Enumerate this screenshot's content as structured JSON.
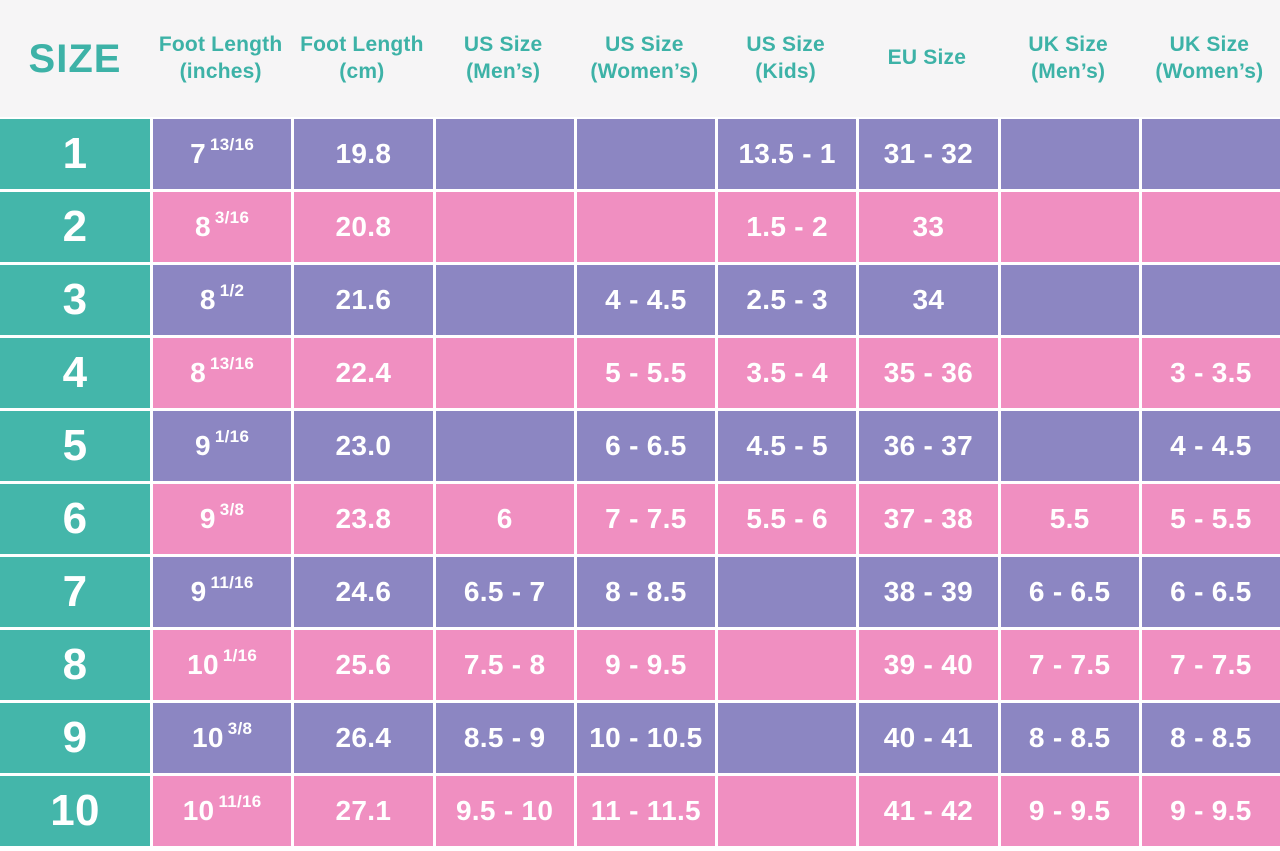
{
  "colors": {
    "teal": "#44b6aa",
    "purple": "#8c86c2",
    "pink": "#f08fc1",
    "header_background": "#f6f5f6",
    "header_text": "#3db2a7",
    "cell_text": "#ffffff"
  },
  "chart_data": {
    "type": "table",
    "columns": [
      {
        "label": "SIZE",
        "sub": ""
      },
      {
        "label": "Foot Length",
        "sub": "(inches)"
      },
      {
        "label": "Foot Length",
        "sub": "(cm)"
      },
      {
        "label": "US Size",
        "sub": "(Men’s)"
      },
      {
        "label": "US Size",
        "sub": "(Women’s)"
      },
      {
        "label": "US Size",
        "sub": "(Kids)"
      },
      {
        "label": "EU Size",
        "sub": ""
      },
      {
        "label": "UK Size",
        "sub": "(Men’s)"
      },
      {
        "label": "UK Size",
        "sub": "(Women’s)"
      }
    ],
    "rows": [
      {
        "size": "1",
        "inches_whole": "7",
        "inches_frac": "13/16",
        "cm": "19.8",
        "us_mens": "",
        "us_womens": "",
        "us_kids": "13.5 - 1",
        "eu": "31 - 32",
        "uk_mens": "",
        "uk_womens": ""
      },
      {
        "size": "2",
        "inches_whole": "8",
        "inches_frac": "3/16",
        "cm": "20.8",
        "us_mens": "",
        "us_womens": "",
        "us_kids": "1.5 - 2",
        "eu": "33",
        "uk_mens": "",
        "uk_womens": ""
      },
      {
        "size": "3",
        "inches_whole": "8",
        "inches_frac": "1/2",
        "cm": "21.6",
        "us_mens": "",
        "us_womens": "4 - 4.5",
        "us_kids": "2.5 - 3",
        "eu": "34",
        "uk_mens": "",
        "uk_womens": ""
      },
      {
        "size": "4",
        "inches_whole": "8",
        "inches_frac": "13/16",
        "cm": "22.4",
        "us_mens": "",
        "us_womens": "5 - 5.5",
        "us_kids": "3.5 - 4",
        "eu": "35 - 36",
        "uk_mens": "",
        "uk_womens": "3 - 3.5"
      },
      {
        "size": "5",
        "inches_whole": "9",
        "inches_frac": "1/16",
        "cm": "23.0",
        "us_mens": "",
        "us_womens": "6 - 6.5",
        "us_kids": "4.5 - 5",
        "eu": "36 - 37",
        "uk_mens": "",
        "uk_womens": "4 - 4.5"
      },
      {
        "size": "6",
        "inches_whole": "9",
        "inches_frac": "3/8",
        "cm": "23.8",
        "us_mens": "6",
        "us_womens": "7 - 7.5",
        "us_kids": "5.5 - 6",
        "eu": "37 - 38",
        "uk_mens": "5.5",
        "uk_womens": "5 - 5.5"
      },
      {
        "size": "7",
        "inches_whole": "9",
        "inches_frac": "11/16",
        "cm": "24.6",
        "us_mens": "6.5 - 7",
        "us_womens": "8 - 8.5",
        "us_kids": "",
        "eu": "38 - 39",
        "uk_mens": "6 - 6.5",
        "uk_womens": "6 - 6.5"
      },
      {
        "size": "8",
        "inches_whole": "10",
        "inches_frac": "1/16",
        "cm": "25.6",
        "us_mens": "7.5 - 8",
        "us_womens": "9 - 9.5",
        "us_kids": "",
        "eu": "39 - 40",
        "uk_mens": "7 - 7.5",
        "uk_womens": "7 - 7.5"
      },
      {
        "size": "9",
        "inches_whole": "10",
        "inches_frac": "3/8",
        "cm": "26.4",
        "us_mens": "8.5 - 9",
        "us_womens": "10 - 10.5",
        "us_kids": "",
        "eu": "40 - 41",
        "uk_mens": "8 - 8.5",
        "uk_womens": "8 - 8.5"
      },
      {
        "size": "10",
        "inches_whole": "10",
        "inches_frac": "11/16",
        "cm": "27.1",
        "us_mens": "9.5 - 10",
        "us_womens": "11 - 11.5",
        "us_kids": "",
        "eu": "41 - 42",
        "uk_mens": "9 - 9.5",
        "uk_womens": "9 - 9.5"
      }
    ]
  }
}
